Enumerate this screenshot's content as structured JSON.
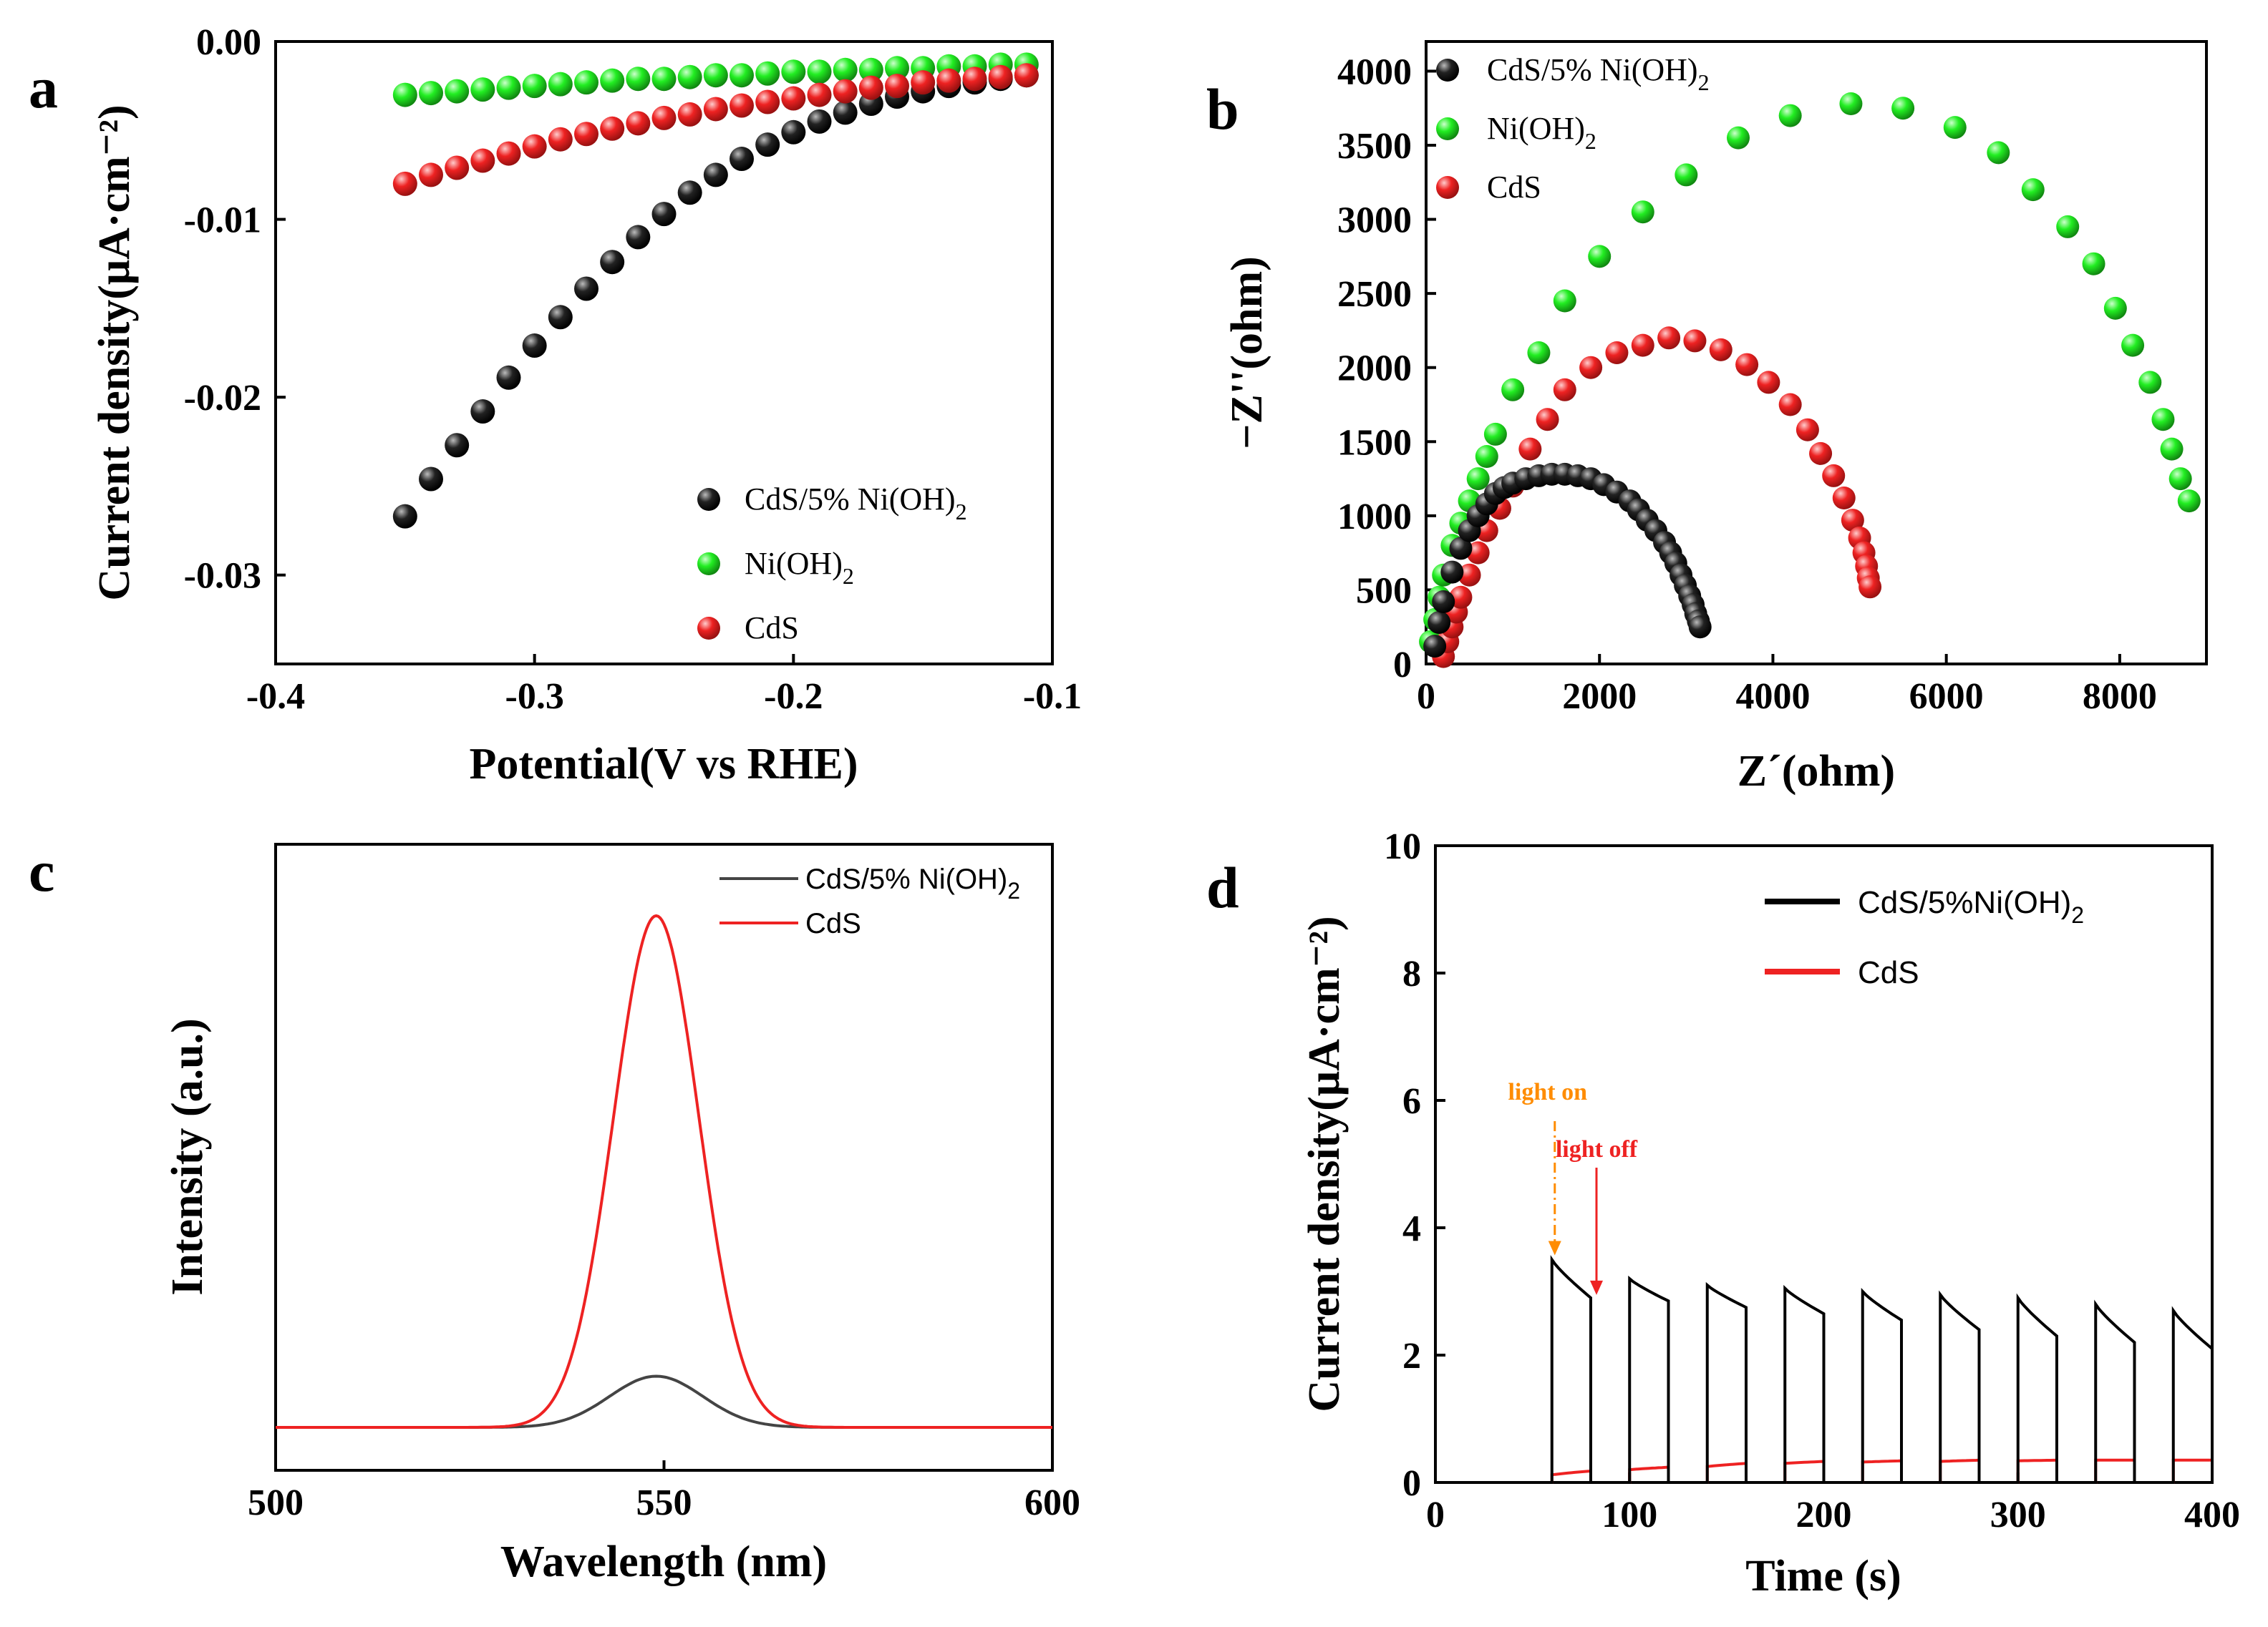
{
  "chart_data": [
    {
      "id": "a",
      "panel_label": "a",
      "type": "scatter",
      "xlabel": "Potential(V vs RHE)",
      "ylabel": "Current density(μA·cm⁻²)",
      "xlim": [
        -0.4,
        -0.1
      ],
      "ylim": [
        -0.035,
        0.0
      ],
      "xticks": [
        -0.4,
        -0.3,
        -0.2,
        -0.1
      ],
      "xtick_labels": [
        "-0.4",
        "-0.3",
        "-0.2",
        "-0.1"
      ],
      "yticks": [
        -0.03,
        -0.02,
        -0.01,
        0.0
      ],
      "ytick_labels": [
        "-0.03",
        "-0.02",
        "-0.01",
        "0.00"
      ],
      "legend_position": "bottom-right",
      "series": [
        {
          "name": "CdS/5% Ni(OH)2",
          "label_main": "CdS/5% Ni(OH)",
          "label_sub": "2",
          "color": "#111111",
          "x": [
            -0.35,
            -0.34,
            -0.33,
            -0.32,
            -0.31,
            -0.3,
            -0.29,
            -0.28,
            -0.27,
            -0.26,
            -0.25,
            -0.24,
            -0.23,
            -0.22,
            -0.21,
            -0.2,
            -0.19,
            -0.18,
            -0.17,
            -0.16,
            -0.15,
            -0.14,
            -0.13,
            -0.12,
            -0.11
          ],
          "y": [
            -0.0267,
            -0.0246,
            -0.0227,
            -0.0208,
            -0.0189,
            -0.0171,
            -0.0155,
            -0.0139,
            -0.0124,
            -0.011,
            -0.0097,
            -0.0085,
            -0.0075,
            -0.0066,
            -0.0058,
            -0.0051,
            -0.0045,
            -0.004,
            -0.0035,
            -0.0031,
            -0.0028,
            -0.0025,
            -0.0023,
            -0.0021,
            -0.0019
          ]
        },
        {
          "name": "Ni(OH)2",
          "label_main": "Ni(OH)",
          "label_sub": "2",
          "color": "#22dd22",
          "x": [
            -0.35,
            -0.34,
            -0.33,
            -0.32,
            -0.31,
            -0.3,
            -0.29,
            -0.28,
            -0.27,
            -0.26,
            -0.25,
            -0.24,
            -0.23,
            -0.22,
            -0.21,
            -0.2,
            -0.19,
            -0.18,
            -0.17,
            -0.16,
            -0.15,
            -0.14,
            -0.13,
            -0.12,
            -0.11
          ],
          "y": [
            -0.003,
            -0.0029,
            -0.0028,
            -0.0027,
            -0.0026,
            -0.0025,
            -0.0024,
            -0.0023,
            -0.0022,
            -0.0021,
            -0.0021,
            -0.002,
            -0.0019,
            -0.0019,
            -0.0018,
            -0.0017,
            -0.0017,
            -0.0016,
            -0.0016,
            -0.0015,
            -0.0015,
            -0.0014,
            -0.0014,
            -0.0013,
            -0.0013
          ]
        },
        {
          "name": "CdS",
          "label_main": "CdS",
          "label_sub": "",
          "color": "#ee2222",
          "x": [
            -0.35,
            -0.34,
            -0.33,
            -0.32,
            -0.31,
            -0.3,
            -0.29,
            -0.28,
            -0.27,
            -0.26,
            -0.25,
            -0.24,
            -0.23,
            -0.22,
            -0.21,
            -0.2,
            -0.19,
            -0.18,
            -0.17,
            -0.16,
            -0.15,
            -0.14,
            -0.13,
            -0.12,
            -0.11
          ],
          "y": [
            -0.008,
            -0.0075,
            -0.0071,
            -0.0067,
            -0.0063,
            -0.0059,
            -0.0055,
            -0.0052,
            -0.0049,
            -0.0046,
            -0.0043,
            -0.0041,
            -0.0038,
            -0.0036,
            -0.0034,
            -0.0032,
            -0.003,
            -0.0028,
            -0.0026,
            -0.0025,
            -0.0023,
            -0.0022,
            -0.0021,
            -0.002,
            -0.0019
          ]
        }
      ]
    },
    {
      "id": "b",
      "panel_label": "b",
      "type": "scatter",
      "xlabel": "Z´(ohm)",
      "ylabel": "−Z''(ohm)",
      "xlim": [
        0,
        9000
      ],
      "ylim": [
        0,
        4200
      ],
      "xticks": [
        0,
        2000,
        4000,
        6000,
        8000
      ],
      "xtick_labels": [
        "0",
        "2000",
        "4000",
        "6000",
        "8000"
      ],
      "yticks": [
        0,
        500,
        1000,
        1500,
        2000,
        2500,
        3000,
        3500,
        4000
      ],
      "ytick_labels": [
        "0",
        "500",
        "1000",
        "1500",
        "2000",
        "2500",
        "3000",
        "3500",
        "4000"
      ],
      "legend_position": "top-left",
      "series": [
        {
          "name": "CdS/5% Ni(OH)2",
          "label_main": "CdS/5% Ni(OH)",
          "label_sub": "2",
          "color": "#111111",
          "x": [
            100,
            150,
            200,
            300,
            400,
            500,
            600,
            700,
            800,
            900,
            1000,
            1150,
            1300,
            1450,
            1600,
            1750,
            1900,
            2050,
            2200,
            2350,
            2450,
            2550,
            2650,
            2750,
            2820,
            2880,
            2940,
            2990,
            3040,
            3080,
            3110,
            3140,
            3160
          ],
          "y": [
            120,
            280,
            420,
            620,
            780,
            900,
            1000,
            1080,
            1150,
            1190,
            1220,
            1250,
            1270,
            1280,
            1280,
            1270,
            1250,
            1210,
            1160,
            1100,
            1040,
            970,
            900,
            820,
            750,
            680,
            600,
            530,
            460,
            400,
            340,
            290,
            250
          ]
        },
        {
          "name": "Ni(OH)2",
          "label_main": "Ni(OH)",
          "label_sub": "2",
          "color": "#22dd22",
          "x": [
            50,
            100,
            150,
            200,
            300,
            400,
            500,
            600,
            700,
            800,
            1000,
            1300,
            1600,
            2000,
            2500,
            3000,
            3600,
            4200,
            4900,
            5500,
            6100,
            6600,
            7000,
            7400,
            7700,
            7950,
            8150,
            8350,
            8500,
            8600,
            8700,
            8800
          ],
          "y": [
            150,
            300,
            450,
            600,
            800,
            950,
            1100,
            1250,
            1400,
            1550,
            1850,
            2100,
            2450,
            2750,
            3050,
            3300,
            3550,
            3700,
            3780,
            3750,
            3620,
            3450,
            3200,
            2950,
            2700,
            2400,
            2150,
            1900,
            1650,
            1450,
            1250,
            1100
          ]
        },
        {
          "name": "CdS",
          "label_main": "CdS",
          "label_sub": "",
          "color": "#ee2222",
          "x": [
            200,
            250,
            300,
            350,
            400,
            500,
            600,
            700,
            850,
            1000,
            1200,
            1400,
            1600,
            1900,
            2200,
            2500,
            2800,
            3100,
            3400,
            3700,
            3950,
            4200,
            4400,
            4550,
            4700,
            4820,
            4920,
            5000,
            5050,
            5080,
            5100,
            5120
          ],
          "y": [
            50,
            150,
            250,
            350,
            450,
            600,
            750,
            900,
            1050,
            1200,
            1450,
            1650,
            1850,
            2000,
            2100,
            2150,
            2200,
            2180,
            2120,
            2020,
            1900,
            1750,
            1580,
            1420,
            1270,
            1120,
            970,
            850,
            750,
            660,
            580,
            520
          ]
        }
      ]
    },
    {
      "id": "c",
      "panel_label": "c",
      "type": "line",
      "xlabel": "Wavelength (nm)",
      "ylabel": "Intensity (a.u.)",
      "xlim": [
        500,
        600
      ],
      "xticks": [
        500,
        550,
        600
      ],
      "xtick_labels": [
        "500",
        "550",
        "600"
      ],
      "yticks": [],
      "ytick_labels": [],
      "legend_position": "top-right",
      "series": [
        {
          "name": "CdS/5% Ni(OH)2",
          "label_main": "CdS/5% Ni(OH)",
          "label_sub": "2",
          "color": "#444444",
          "peak_center": 549,
          "peak_sigma": 6.0,
          "peak_height_relative": 0.1
        },
        {
          "name": "CdS",
          "label_main": "CdS",
          "label_sub": "",
          "color": "#ee2222",
          "peak_center": 549,
          "peak_sigma": 5.5,
          "peak_height_relative": 1.0
        }
      ]
    },
    {
      "id": "d",
      "panel_label": "d",
      "type": "line",
      "xlabel": "Time (s)",
      "ylabel": "Current density(μA·cm⁻²)",
      "xlim": [
        0,
        400
      ],
      "ylim": [
        0,
        10
      ],
      "xticks": [
        0,
        100,
        200,
        300,
        400
      ],
      "xtick_labels": [
        "0",
        "100",
        "200",
        "300",
        "400"
      ],
      "yticks": [
        0,
        2,
        4,
        6,
        8,
        10
      ],
      "ytick_labels": [
        "0",
        "2",
        "4",
        "6",
        "8",
        "10"
      ],
      "legend_position": "top-right",
      "annotations": [
        {
          "text": "light on",
          "color": "#ff8c00",
          "x": 60,
          "arrow_to_y": 3.5
        },
        {
          "text": "light off",
          "color": "#ee2222",
          "x": 80,
          "arrow_to_y": 2.9
        }
      ],
      "series": [
        {
          "name": "CdS/5%Ni(OH)2",
          "label_main": "CdS/5%Ni(OH)",
          "label_sub": "2",
          "color": "#000000",
          "light_on_times": [
            60,
            100,
            140,
            180,
            220,
            260,
            300,
            340,
            380
          ],
          "light_off_times": [
            80,
            120,
            160,
            200,
            240,
            280,
            320,
            360,
            400
          ],
          "on_start_values": [
            3.5,
            3.2,
            3.1,
            3.05,
            3.0,
            2.95,
            2.9,
            2.8,
            2.7
          ],
          "on_end_values": [
            2.9,
            2.85,
            2.75,
            2.65,
            2.55,
            2.4,
            2.3,
            2.2,
            2.1
          ]
        },
        {
          "name": "CdS",
          "label_main": "CdS",
          "label_sub": "",
          "color": "#ee2222",
          "light_on_times": [
            60,
            100,
            140,
            180,
            220,
            260,
            300,
            340,
            380
          ],
          "light_off_times": [
            80,
            120,
            160,
            200,
            240,
            280,
            320,
            360,
            400
          ],
          "on_start_values": [
            0.12,
            0.2,
            0.25,
            0.3,
            0.32,
            0.33,
            0.34,
            0.35,
            0.35
          ],
          "on_end_values": [
            0.18,
            0.24,
            0.3,
            0.33,
            0.34,
            0.35,
            0.35,
            0.35,
            0.35
          ]
        }
      ]
    }
  ]
}
